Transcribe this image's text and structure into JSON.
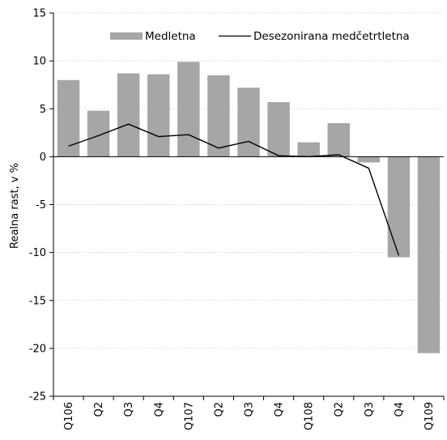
{
  "chart_data": {
    "type": "bar",
    "categories": [
      "Q106",
      "Q2",
      "Q3",
      "Q4",
      "Q107",
      "Q2",
      "Q3",
      "Q4",
      "Q108",
      "Q2",
      "Q3",
      "Q4",
      "Q109"
    ],
    "series": [
      {
        "name": "Medletna",
        "kind": "bar",
        "color": "#a6a6a6",
        "values": [
          8.0,
          4.8,
          8.7,
          8.6,
          9.9,
          8.5,
          7.2,
          5.7,
          1.5,
          3.5,
          -0.6,
          -10.5,
          -20.5
        ]
      },
      {
        "name": "Desezonirana medčetrtletna",
        "kind": "line",
        "color": "#000000",
        "values": [
          1.1,
          2.2,
          3.4,
          2.1,
          2.3,
          0.9,
          1.6,
          0.1,
          0.0,
          0.2,
          -1.2,
          -10.3,
          null
        ]
      }
    ],
    "ylabel": "Realna rast, v %",
    "xlabel": "",
    "ylim": [
      -25,
      15
    ],
    "yticks": [
      15,
      10,
      5,
      0,
      -5,
      -10,
      -15,
      -20,
      -25
    ],
    "grid": true,
    "legend": "top"
  }
}
